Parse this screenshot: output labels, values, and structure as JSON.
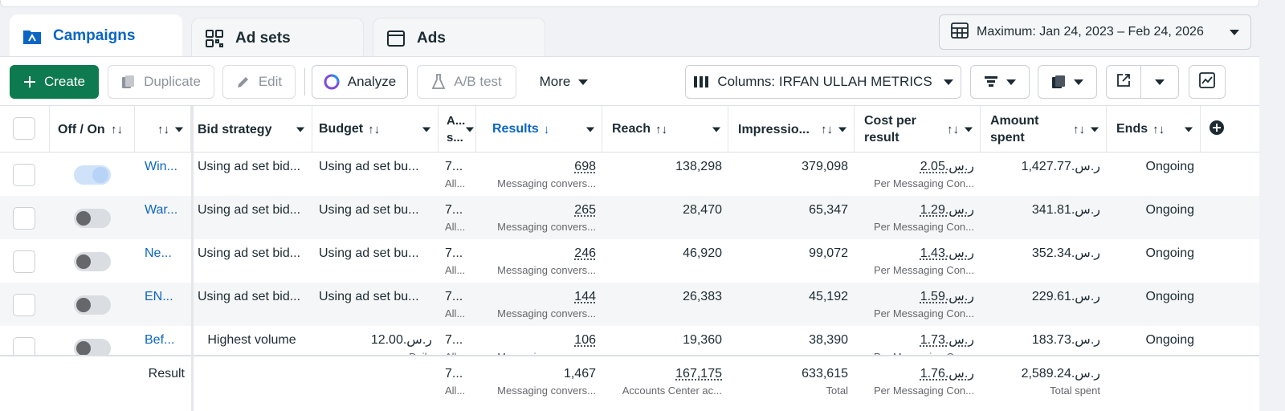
{
  "tabs": [
    {
      "label": "Campaigns",
      "icon": "campaigns-icon",
      "active": true
    },
    {
      "label": "Ad sets",
      "icon": "ad-sets-icon",
      "active": false
    },
    {
      "label": "Ads",
      "icon": "ads-icon",
      "active": false
    }
  ],
  "date_range": {
    "label": "Maximum: Jan 24, 2023 – Feb 24, 2026"
  },
  "toolbar": {
    "create": "Create",
    "duplicate": "Duplicate",
    "edit": "Edit",
    "analyze": "Analyze",
    "ab_test": "A/B test",
    "more": "More",
    "columns": "Columns: IRFAN ULLAH METRICS"
  },
  "columns": {
    "off_on": "Off / On",
    "bid_strategy": "Bid strategy",
    "budget": "Budget",
    "attribution": "A... s...",
    "results": "Results",
    "reach": "Reach",
    "impressions": "Impressio...",
    "cost_per_result": "Cost per result",
    "amount_spent": "Amount spent",
    "ends": "Ends"
  },
  "rows": [
    {
      "name": "Win...",
      "on": true,
      "bid": "Using ad set bid...",
      "budget": "Using ad set bu...",
      "budget_sub": "",
      "attr": "7...",
      "attr_sub": "All...",
      "results": "698",
      "results_sub": "Messaging convers...",
      "reach": "138,298",
      "impressions": "379,098",
      "cpr": "2.05.ر.س",
      "cpr_sub": "Per Messaging Con...",
      "spent": "1,427.77.ر.س",
      "ends": "Ongoing"
    },
    {
      "name": "War...",
      "on": false,
      "bid": "Using ad set bid...",
      "budget": "Using ad set bu...",
      "budget_sub": "",
      "attr": "7...",
      "attr_sub": "All...",
      "results": "265",
      "results_sub": "Messaging convers...",
      "reach": "28,470",
      "impressions": "65,347",
      "cpr": "1.29.ر.س",
      "cpr_sub": "Per Messaging Con...",
      "spent": "341.81.ر.س",
      "ends": "Ongoing"
    },
    {
      "name": "Ne...",
      "on": false,
      "bid": "Using ad set bid...",
      "budget": "Using ad set bu...",
      "budget_sub": "",
      "attr": "7...",
      "attr_sub": "All...",
      "results": "246",
      "results_sub": "Messaging convers...",
      "reach": "46,920",
      "impressions": "99,072",
      "cpr": "1.43.ر.س",
      "cpr_sub": "Per Messaging Con...",
      "spent": "352.34.ر.س",
      "ends": "Ongoing"
    },
    {
      "name": "EN...",
      "on": false,
      "bid": "Using ad set bid...",
      "budget": "Using ad set bu...",
      "budget_sub": "",
      "attr": "7...",
      "attr_sub": "All...",
      "results": "144",
      "results_sub": "Messaging convers...",
      "reach": "26,383",
      "impressions": "45,192",
      "cpr": "1.59.ر.س",
      "cpr_sub": "Per Messaging Con...",
      "spent": "229.61.ر.س",
      "ends": "Ongoing"
    },
    {
      "name": "Bef...",
      "on": false,
      "bid": "Highest volume",
      "budget": "12.00.ر.س",
      "budget_sub": "Daily",
      "attr": "7...",
      "attr_sub": "All...",
      "results": "106",
      "results_sub": "Messaging convers...",
      "reach": "19,360",
      "impressions": "38,390",
      "cpr": "1.73.ر.س",
      "cpr_sub": "Per Messaging Con...",
      "spent": "183.73.ر.س",
      "ends": "Ongoing"
    }
  ],
  "totals": {
    "label": "Result",
    "attr": "7...",
    "attr_sub": "All...",
    "results": "1,467",
    "results_sub": "Messaging convers...",
    "reach": "167,175",
    "reach_sub": "Accounts Center ac...",
    "impressions": "633,615",
    "impressions_sub": "Total",
    "cpr": "1.76.ر.س",
    "cpr_sub": "Per Messaging Con...",
    "spent": "2,589.24.ر.س",
    "spent_sub": "Total spent"
  },
  "colors": {
    "accent": "#0a66c2",
    "create": "#0e7a4f"
  }
}
